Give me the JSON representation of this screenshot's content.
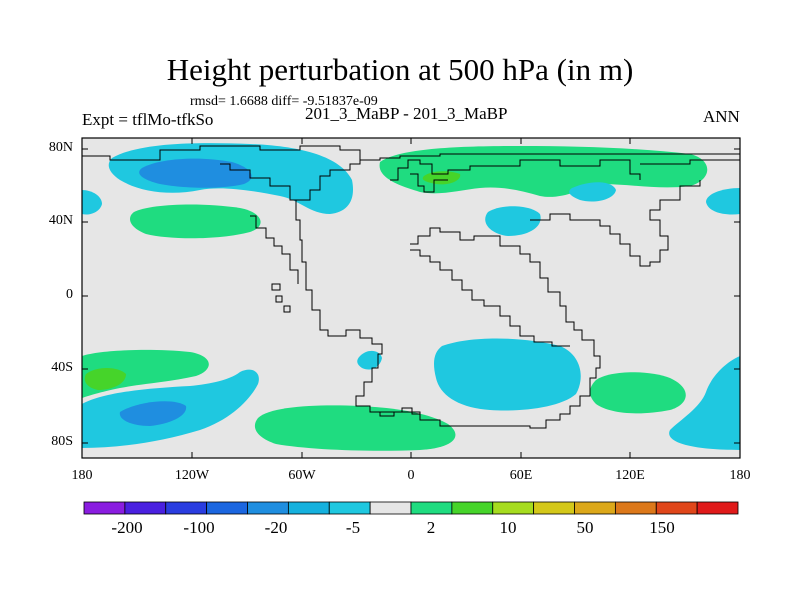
{
  "title": "Height perturbation at 500 hPa (in m)",
  "stats": "rmsd= 1.6688 diff= -9.51837e-09",
  "left_label": "Expt = tflMo-tfkSo",
  "center_label": "201_3_MaBP - 201_3_MaBP",
  "right_label": "ANN",
  "axes": {
    "y_ticks": [
      "80N",
      "40N",
      "0",
      "40S",
      "80S"
    ],
    "x_ticks": [
      "180",
      "120W",
      "60W",
      "0",
      "60E",
      "120E",
      "180"
    ]
  },
  "colorbar": {
    "colors": [
      "#8a1de0",
      "#4a20e0",
      "#2a3de0",
      "#1b66e0",
      "#1f8ee0",
      "#15b1de",
      "#1fc8e0",
      "#e6e6e6",
      "#1fdc80",
      "#46d42a",
      "#a6dc1f",
      "#d4c81a",
      "#dca81a",
      "#dc781a",
      "#e0461a",
      "#e01a1a"
    ],
    "labels": [
      "-200",
      "-100",
      "-20",
      "-5",
      "2",
      "10",
      "50",
      "150"
    ]
  },
  "fill_colors": {
    "land_bg": "#e6e6e6",
    "cyan": "#1fc8e0",
    "blue": "#1f8ee0",
    "green": "#1fdc80",
    "bright_green": "#46d42a"
  }
}
